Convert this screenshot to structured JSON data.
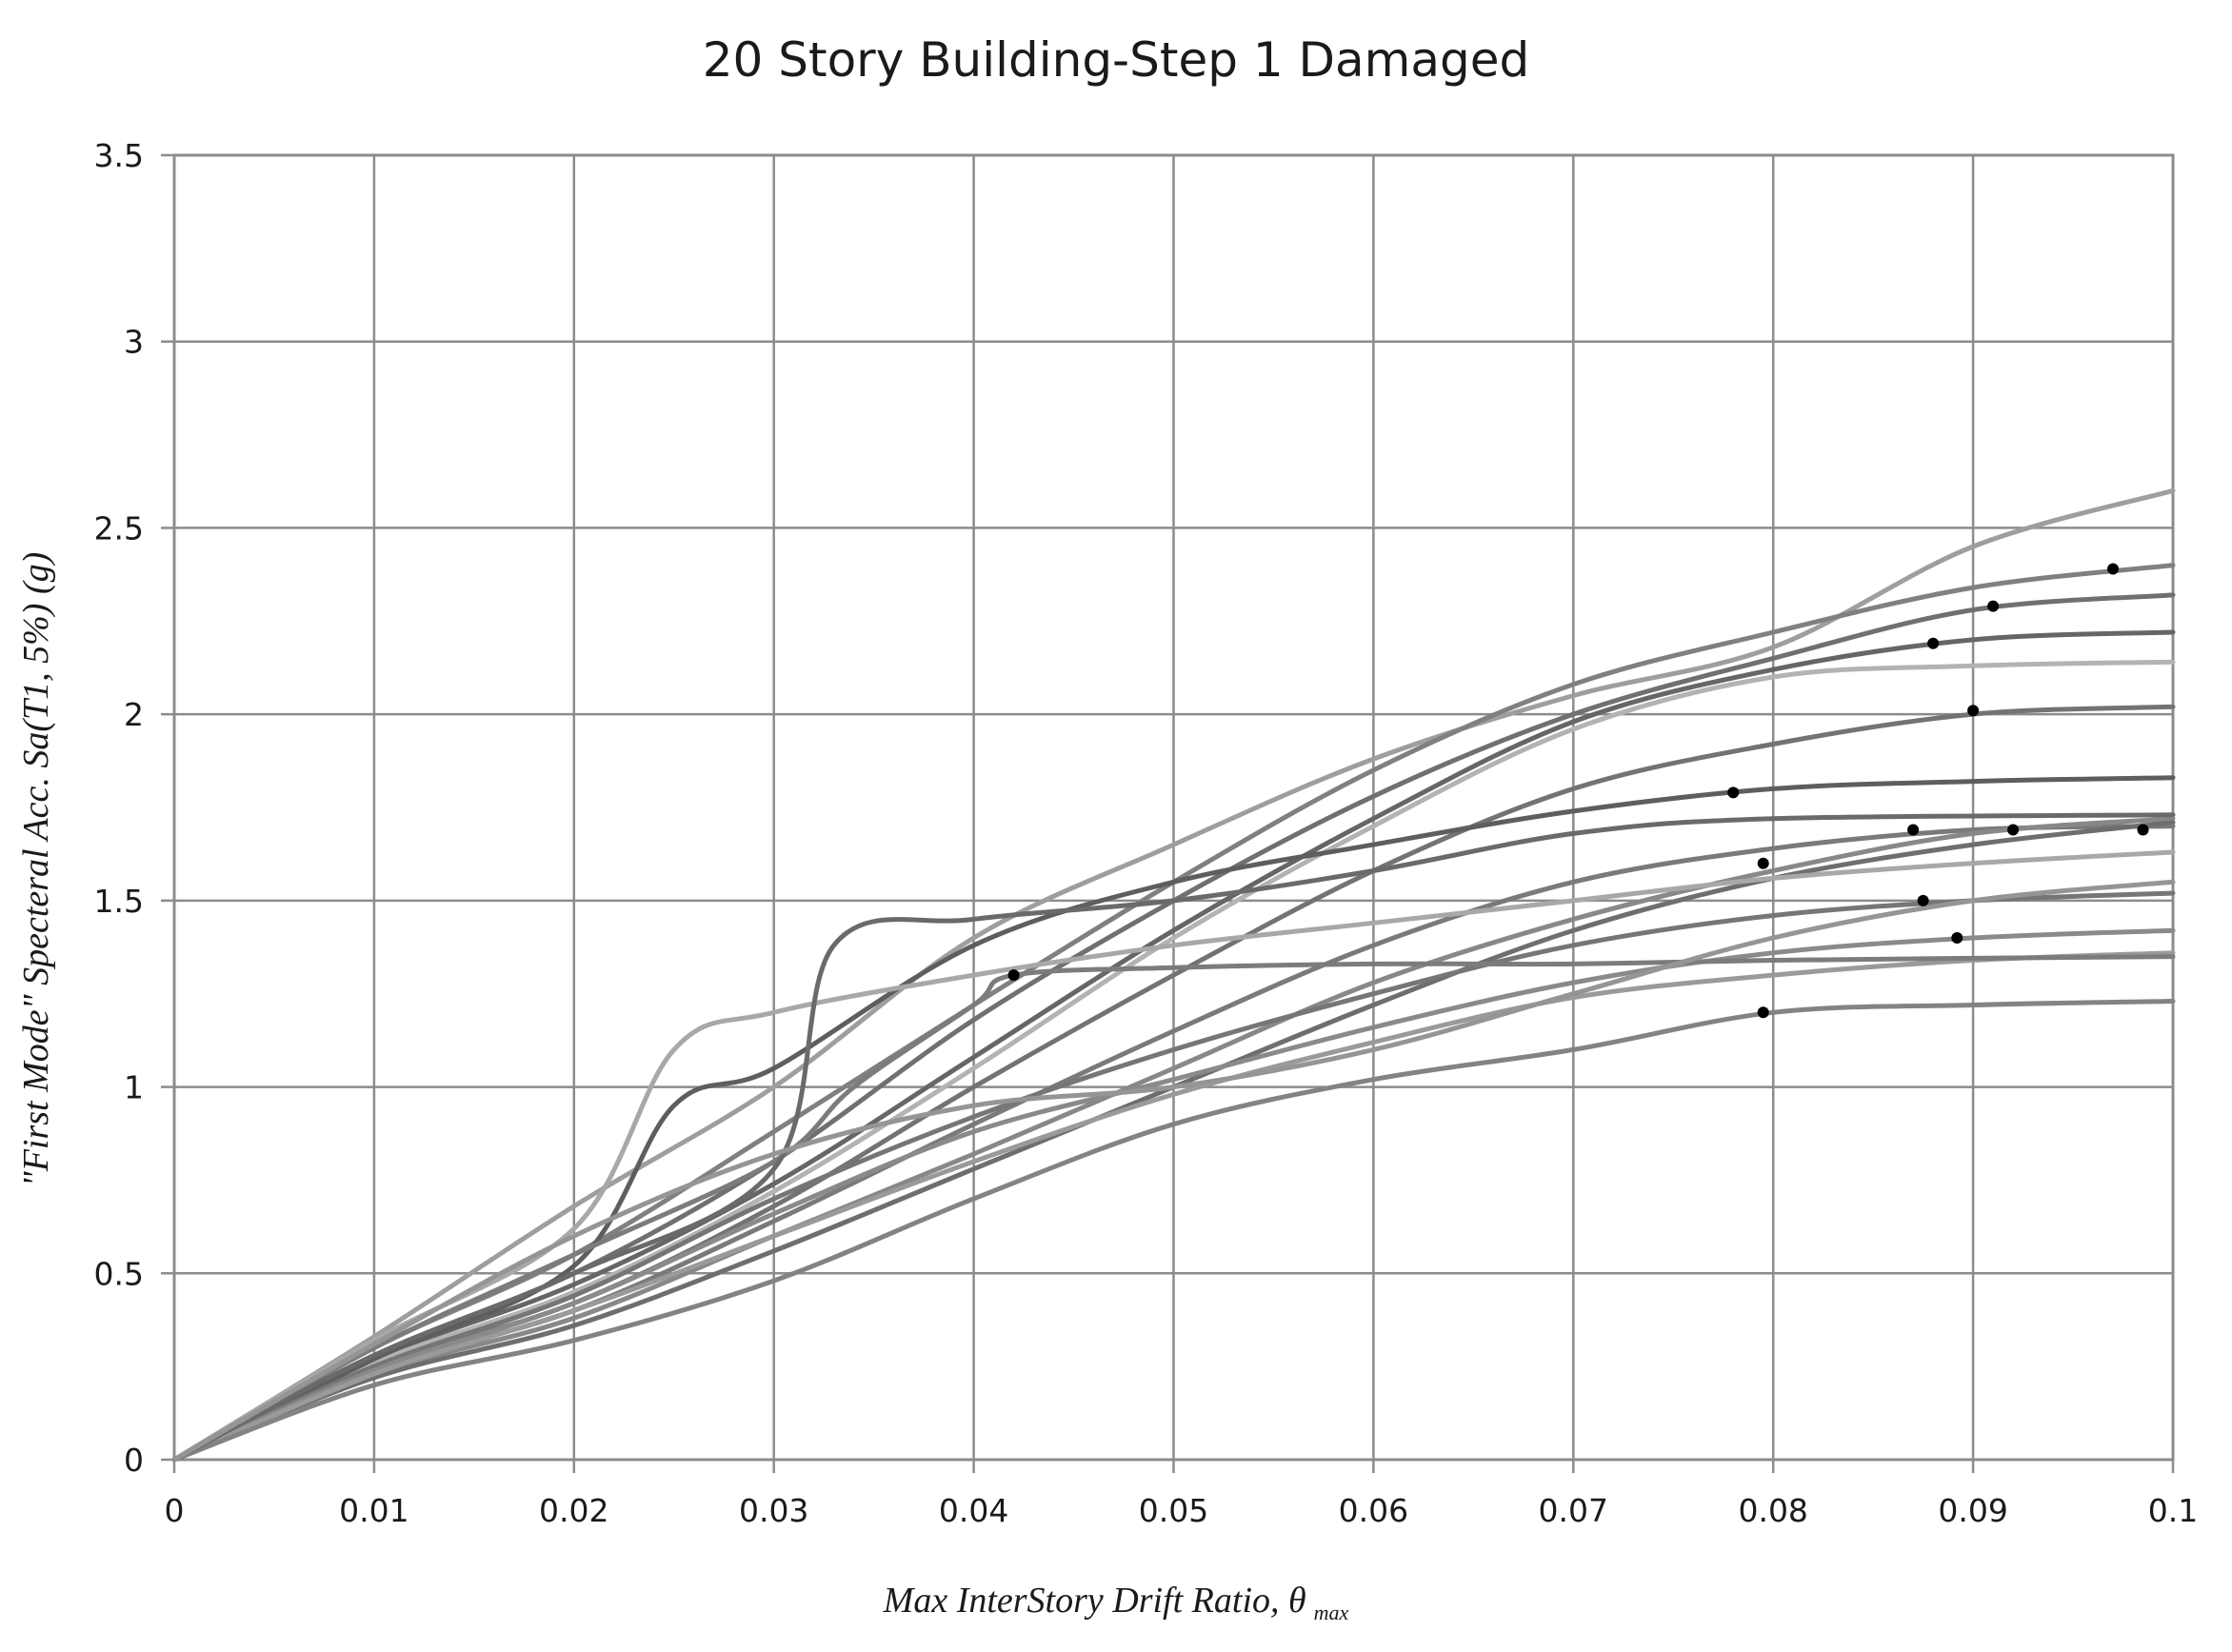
{
  "chart_data": {
    "type": "line",
    "title": "20 Story Building-Step 1 Damaged",
    "xlabel": "Max InterStory Drift Ratio, θ",
    "xlabel_subscript": "max",
    "ylabel": "\"First Mode\" Specteral Acc. Sa(T1, 5%) (g)",
    "xlim": [
      0,
      0.1
    ],
    "ylim": [
      0,
      3.5
    ],
    "x_ticks": [
      0,
      0.01,
      0.02,
      0.03,
      0.04,
      0.05,
      0.06,
      0.07,
      0.08,
      0.09,
      0.1
    ],
    "x_tick_labels": [
      "0",
      "0.01",
      "0.02",
      "0.03",
      "0.04",
      "0.05",
      "0.06",
      "0.07",
      "0.08",
      "0.09",
      "0.1"
    ],
    "y_ticks": [
      0,
      0.5,
      1,
      1.5,
      2,
      2.5,
      3,
      3.5
    ],
    "y_tick_labels": [
      "0",
      "0.5",
      "1",
      "1.5",
      "2",
      "2.5",
      "3",
      "3.5"
    ],
    "grid": true,
    "colors": {
      "grid": "#8c8c8c",
      "frame": "#8c8c8c",
      "marker": "#000000"
    },
    "series": [
      {
        "color": "#9e9e9e",
        "points": [
          [
            0,
            0
          ],
          [
            0.01,
            0.33
          ],
          [
            0.02,
            0.68
          ],
          [
            0.03,
            1.0
          ],
          [
            0.04,
            1.4
          ],
          [
            0.05,
            1.65
          ],
          [
            0.06,
            1.88
          ],
          [
            0.07,
            2.05
          ],
          [
            0.08,
            2.18
          ],
          [
            0.09,
            2.45
          ],
          [
            0.1,
            2.6
          ]
        ]
      },
      {
        "color": "#808080",
        "points": [
          [
            0,
            0
          ],
          [
            0.01,
            0.3
          ],
          [
            0.02,
            0.55
          ],
          [
            0.03,
            0.88
          ],
          [
            0.04,
            1.22
          ],
          [
            0.05,
            1.55
          ],
          [
            0.06,
            1.85
          ],
          [
            0.07,
            2.08
          ],
          [
            0.08,
            2.22
          ],
          [
            0.09,
            2.34
          ],
          [
            0.1,
            2.4
          ]
        ],
        "marker": [
          0.097,
          2.39
        ]
      },
      {
        "color": "#707070",
        "points": [
          [
            0,
            0
          ],
          [
            0.01,
            0.28
          ],
          [
            0.02,
            0.5
          ],
          [
            0.03,
            0.8
          ],
          [
            0.04,
            1.18
          ],
          [
            0.05,
            1.5
          ],
          [
            0.06,
            1.78
          ],
          [
            0.07,
            2.0
          ],
          [
            0.08,
            2.15
          ],
          [
            0.09,
            2.28
          ],
          [
            0.1,
            2.32
          ]
        ],
        "marker": [
          0.091,
          2.29
        ]
      },
      {
        "color": "#666666",
        "points": [
          [
            0,
            0
          ],
          [
            0.01,
            0.27
          ],
          [
            0.02,
            0.47
          ],
          [
            0.03,
            0.74
          ],
          [
            0.04,
            1.08
          ],
          [
            0.05,
            1.42
          ],
          [
            0.06,
            1.72
          ],
          [
            0.07,
            1.98
          ],
          [
            0.08,
            2.12
          ],
          [
            0.09,
            2.2
          ],
          [
            0.1,
            2.22
          ]
        ],
        "marker": [
          0.088,
          2.19
        ]
      },
      {
        "color": "#b3b3b3",
        "points": [
          [
            0,
            0
          ],
          [
            0.01,
            0.26
          ],
          [
            0.02,
            0.45
          ],
          [
            0.03,
            0.72
          ],
          [
            0.04,
            1.05
          ],
          [
            0.05,
            1.4
          ],
          [
            0.06,
            1.7
          ],
          [
            0.07,
            1.96
          ],
          [
            0.08,
            2.1
          ],
          [
            0.09,
            2.13
          ],
          [
            0.1,
            2.14
          ]
        ]
      },
      {
        "color": "#737373",
        "points": [
          [
            0,
            0
          ],
          [
            0.01,
            0.25
          ],
          [
            0.02,
            0.42
          ],
          [
            0.03,
            0.68
          ],
          [
            0.04,
            1.0
          ],
          [
            0.05,
            1.3
          ],
          [
            0.06,
            1.58
          ],
          [
            0.07,
            1.8
          ],
          [
            0.08,
            1.92
          ],
          [
            0.09,
            2.0
          ],
          [
            0.1,
            2.02
          ]
        ],
        "marker": [
          0.09,
          2.01
        ]
      },
      {
        "color": "#5e5e5e",
        "points": [
          [
            0,
            0
          ],
          [
            0.01,
            0.27
          ],
          [
            0.02,
            0.52
          ],
          [
            0.025,
            0.95
          ],
          [
            0.03,
            1.05
          ],
          [
            0.04,
            1.38
          ],
          [
            0.05,
            1.55
          ],
          [
            0.06,
            1.65
          ],
          [
            0.07,
            1.74
          ],
          [
            0.08,
            1.8
          ],
          [
            0.09,
            1.82
          ],
          [
            0.1,
            1.83
          ]
        ],
        "marker": [
          0.078,
          1.79
        ]
      },
      {
        "color": "#7a7a7a",
        "points": [
          [
            0,
            0
          ],
          [
            0.01,
            0.24
          ],
          [
            0.02,
            0.4
          ],
          [
            0.03,
            0.64
          ],
          [
            0.04,
            0.9
          ],
          [
            0.05,
            1.15
          ],
          [
            0.06,
            1.38
          ],
          [
            0.07,
            1.55
          ],
          [
            0.08,
            1.64
          ],
          [
            0.09,
            1.69
          ],
          [
            0.1,
            1.7
          ]
        ],
        "marker": [
          0.087,
          1.69
        ]
      },
      {
        "color": "#888888",
        "points": [
          [
            0,
            0
          ],
          [
            0.01,
            0.23
          ],
          [
            0.02,
            0.38
          ],
          [
            0.03,
            0.6
          ],
          [
            0.04,
            0.82
          ],
          [
            0.05,
            1.05
          ],
          [
            0.06,
            1.28
          ],
          [
            0.07,
            1.45
          ],
          [
            0.08,
            1.58
          ],
          [
            0.09,
            1.68
          ],
          [
            0.1,
            1.72
          ]
        ],
        "marker": [
          0.092,
          1.69
        ]
      },
      {
        "color": "#6e6e6e",
        "points": [
          [
            0,
            0
          ],
          [
            0.01,
            0.22
          ],
          [
            0.02,
            0.36
          ],
          [
            0.03,
            0.56
          ],
          [
            0.04,
            0.78
          ],
          [
            0.05,
            1.0
          ],
          [
            0.06,
            1.22
          ],
          [
            0.07,
            1.42
          ],
          [
            0.08,
            1.56
          ],
          [
            0.09,
            1.65
          ],
          [
            0.1,
            1.71
          ]
        ],
        "marker": [
          0.0985,
          1.69
        ]
      },
      {
        "color": "#a8a8a8",
        "points": [
          [
            0,
            0
          ],
          [
            0.01,
            0.32
          ],
          [
            0.02,
            0.62
          ],
          [
            0.025,
            1.1
          ],
          [
            0.03,
            1.2
          ],
          [
            0.04,
            1.3
          ],
          [
            0.05,
            1.38
          ],
          [
            0.06,
            1.44
          ],
          [
            0.07,
            1.5
          ],
          [
            0.08,
            1.56
          ],
          [
            0.09,
            1.6
          ],
          [
            0.1,
            1.63
          ]
        ],
        "marker": [
          0.0795,
          1.6
        ]
      },
      {
        "color": "#767676",
        "points": [
          [
            0,
            0
          ],
          [
            0.01,
            0.25
          ],
          [
            0.02,
            0.44
          ],
          [
            0.03,
            0.7
          ],
          [
            0.04,
            0.92
          ],
          [
            0.05,
            1.1
          ],
          [
            0.06,
            1.25
          ],
          [
            0.07,
            1.38
          ],
          [
            0.08,
            1.46
          ],
          [
            0.09,
            1.5
          ],
          [
            0.1,
            1.52
          ]
        ],
        "marker": [
          0.0875,
          1.5
        ]
      },
      {
        "color": "#8a8a8a",
        "points": [
          [
            0,
            0
          ],
          [
            0.01,
            0.24
          ],
          [
            0.02,
            0.42
          ],
          [
            0.03,
            0.66
          ],
          [
            0.04,
            0.88
          ],
          [
            0.05,
            1.02
          ],
          [
            0.06,
            1.16
          ],
          [
            0.07,
            1.28
          ],
          [
            0.08,
            1.36
          ],
          [
            0.09,
            1.4
          ],
          [
            0.1,
            1.42
          ]
        ],
        "marker": [
          0.0892,
          1.4
        ]
      },
      {
        "color": "#9a9a9a",
        "points": [
          [
            0,
            0
          ],
          [
            0.01,
            0.23
          ],
          [
            0.02,
            0.4
          ],
          [
            0.03,
            0.6
          ],
          [
            0.04,
            0.8
          ],
          [
            0.05,
            0.98
          ],
          [
            0.06,
            1.12
          ],
          [
            0.07,
            1.24
          ],
          [
            0.08,
            1.3
          ],
          [
            0.09,
            1.34
          ],
          [
            0.1,
            1.36
          ]
        ]
      },
      {
        "color": "#7c7c7c",
        "points": [
          [
            0,
            0
          ],
          [
            0.01,
            0.3
          ],
          [
            0.02,
            0.55
          ],
          [
            0.03,
            0.8
          ],
          [
            0.034,
            1.0
          ],
          [
            0.04,
            1.22
          ],
          [
            0.042,
            1.3
          ],
          [
            0.05,
            1.32
          ],
          [
            0.06,
            1.33
          ],
          [
            0.07,
            1.33
          ],
          [
            0.08,
            1.34
          ],
          [
            0.1,
            1.35
          ]
        ],
        "marker": [
          0.042,
          1.3
        ]
      },
      {
        "color": "#838383",
        "points": [
          [
            0,
            0
          ],
          [
            0.01,
            0.2
          ],
          [
            0.02,
            0.32
          ],
          [
            0.03,
            0.48
          ],
          [
            0.04,
            0.7
          ],
          [
            0.05,
            0.9
          ],
          [
            0.06,
            1.02
          ],
          [
            0.07,
            1.1
          ],
          [
            0.08,
            1.2
          ],
          [
            0.09,
            1.22
          ],
          [
            0.1,
            1.23
          ]
        ],
        "marker": [
          0.0795,
          1.2
        ]
      },
      {
        "color": "#6a6a6a",
        "points": [
          [
            0,
            0
          ],
          [
            0.01,
            0.28
          ],
          [
            0.02,
            0.5
          ],
          [
            0.03,
            0.78
          ],
          [
            0.033,
            1.38
          ],
          [
            0.04,
            1.45
          ],
          [
            0.05,
            1.5
          ],
          [
            0.06,
            1.58
          ],
          [
            0.07,
            1.68
          ],
          [
            0.08,
            1.72
          ],
          [
            0.1,
            1.73
          ]
        ]
      },
      {
        "color": "#959595",
        "points": [
          [
            0,
            0
          ],
          [
            0.01,
            0.31
          ],
          [
            0.02,
            0.6
          ],
          [
            0.03,
            0.82
          ],
          [
            0.04,
            0.95
          ],
          [
            0.05,
            1.0
          ],
          [
            0.06,
            1.1
          ],
          [
            0.07,
            1.25
          ],
          [
            0.08,
            1.4
          ],
          [
            0.09,
            1.5
          ],
          [
            0.1,
            1.55
          ]
        ]
      }
    ]
  }
}
